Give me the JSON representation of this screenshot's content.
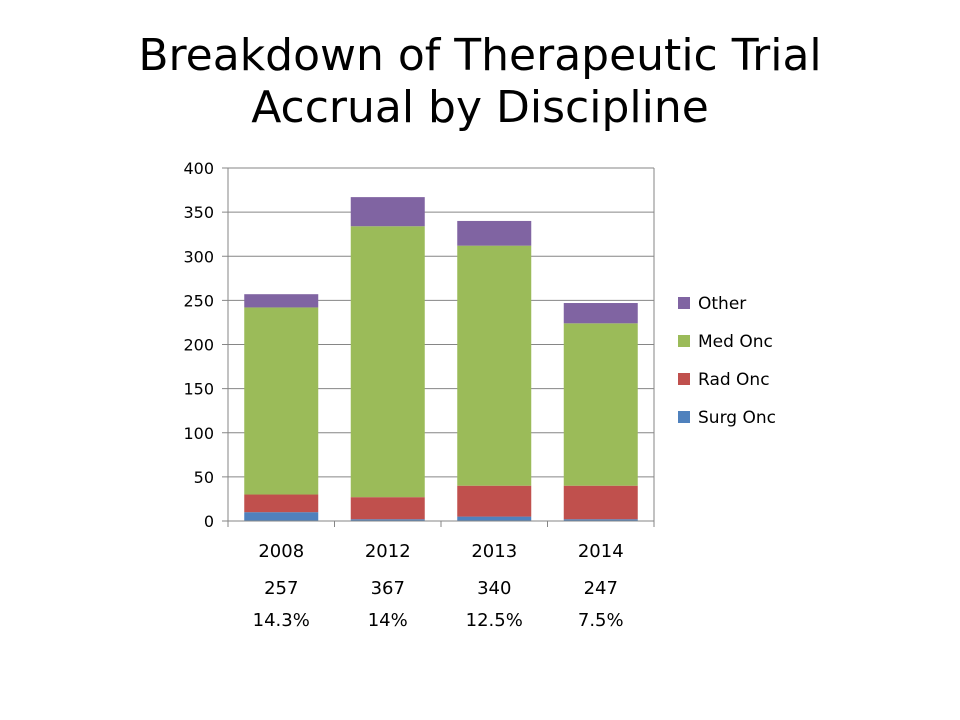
{
  "title_line1": "Breakdown of Therapeutic Trial",
  "title_line2": "Accrual by Discipline",
  "chart_data": {
    "type": "bar",
    "stacked": true,
    "categories": [
      "2008",
      "2012",
      "2013",
      "2014"
    ],
    "ylim": [
      0,
      400
    ],
    "yticks": [
      0,
      50,
      100,
      150,
      200,
      250,
      300,
      350,
      400
    ],
    "ytick_labels": [
      "0",
      "50",
      "100",
      "150",
      "200",
      "250",
      "300",
      "350",
      "400"
    ],
    "gridlines": true,
    "legend_position": "right",
    "series": [
      {
        "name": "Surg Onc",
        "color": "#4F81BD",
        "values": [
          10,
          2,
          5,
          2
        ]
      },
      {
        "name": "Rad Onc",
        "color": "#C0504D",
        "values": [
          20,
          25,
          35,
          38
        ]
      },
      {
        "name": "Med Onc",
        "color": "#9BBB59",
        "values": [
          212,
          307,
          272,
          184
        ]
      },
      {
        "name": "Other",
        "color": "#8064A2",
        "values": [
          15,
          33,
          28,
          23
        ]
      }
    ],
    "totals_row": [
      "257",
      "367",
      "340",
      "247"
    ],
    "percent_row": [
      "14.3%",
      "14%",
      "12.5%",
      "7.5%"
    ]
  }
}
